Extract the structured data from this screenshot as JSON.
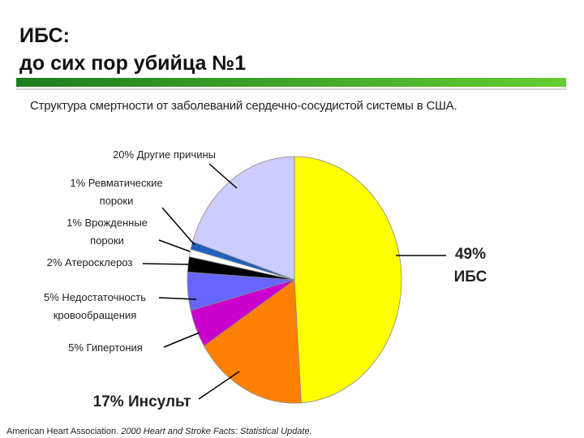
{
  "title": "ИБС:",
  "title_line2": "до сих пор убийца №1",
  "chart_data": {
    "type": "pie",
    "subtitle": "Структура смертности от заболеваний сердечно-сосудистой системы  в США.",
    "categories": [
      "ИБС",
      "Инсульт",
      "Гипертония",
      "Недостаточность кровообращения",
      "Атеросклероз",
      "Врожденные пороки",
      "Ревматические пороки",
      "Другие причины"
    ],
    "values": [
      49,
      17,
      5,
      5,
      2,
      1,
      1,
      20
    ],
    "value_labels": [
      "49%",
      "17%",
      "5%",
      "5%",
      "2%",
      "1%",
      "1%",
      "20%"
    ],
    "colors": [
      "#ffff00",
      "#ff8000",
      "#cc00cc",
      "#6666ff",
      "#000000",
      "#ffffff",
      "#1f5fbf",
      "#ccccff"
    ]
  },
  "source": {
    "author": "American Heart Association.",
    "work": "2000 Heart and Stroke Facts: Statistical Update."
  }
}
